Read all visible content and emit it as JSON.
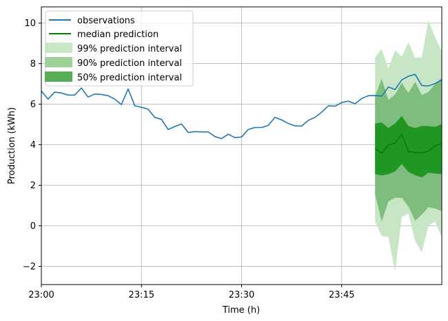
{
  "chart_data": {
    "type": "line",
    "xlabel": "Time (h)",
    "ylabel": "Production (kWh)",
    "xlim": [
      0,
      60
    ],
    "ylim": [
      -2.9,
      10.8
    ],
    "grid": true,
    "legend_position": "top-left",
    "x_ticks": [
      {
        "x": 0,
        "label": "23:00"
      },
      {
        "x": 15,
        "label": "23:15"
      },
      {
        "x": 30,
        "label": "23:30"
      },
      {
        "x": 45,
        "label": "23:45"
      }
    ],
    "y_ticks": [
      {
        "y": -2,
        "label": "−2"
      },
      {
        "y": 0,
        "label": "0"
      },
      {
        "y": 2,
        "label": "2"
      },
      {
        "y": 4,
        "label": "4"
      },
      {
        "y": 6,
        "label": "6"
      },
      {
        "y": 8,
        "label": "8"
      },
      {
        "y": 10,
        "label": "10"
      }
    ],
    "observations": {
      "name": "observations",
      "color": "#1f77b4",
      "x": [
        0,
        1,
        2,
        3,
        4,
        5,
        6,
        7,
        8,
        9,
        10,
        11,
        12,
        13,
        14,
        15,
        16,
        17,
        18,
        19,
        20,
        21,
        22,
        23,
        24,
        25,
        26,
        27,
        28,
        29,
        30,
        31,
        32,
        33,
        34,
        35,
        36,
        37,
        38,
        39,
        40,
        41,
        42,
        43,
        44,
        45,
        46,
        47,
        48,
        49,
        50,
        51,
        52,
        53,
        54,
        55,
        56,
        57,
        58,
        59,
        60
      ],
      "y": [
        6.65,
        6.25,
        6.6,
        6.55,
        6.45,
        6.45,
        6.8,
        6.35,
        6.5,
        6.48,
        6.42,
        6.25,
        5.98,
        6.75,
        5.92,
        5.85,
        5.75,
        5.35,
        5.25,
        4.75,
        4.9,
        5.02,
        4.6,
        4.65,
        4.63,
        4.63,
        4.4,
        4.3,
        4.52,
        4.35,
        4.38,
        4.75,
        4.85,
        4.85,
        4.95,
        5.35,
        5.22,
        5.05,
        4.93,
        4.92,
        5.2,
        5.35,
        5.6,
        5.92,
        5.9,
        6.08,
        6.15,
        6.02,
        6.28,
        6.42,
        6.43,
        6.4,
        6.85,
        6.72,
        7.2,
        7.38,
        7.47,
        6.92,
        6.9,
        7.02,
        7.2
      ]
    },
    "median": {
      "name": "median prediction",
      "color": "#008000",
      "x": [
        50,
        51,
        52,
        53,
        54,
        55,
        56,
        57,
        58,
        59,
        60
      ],
      "y": [
        3.82,
        3.58,
        3.98,
        4.08,
        4.52,
        3.65,
        3.62,
        3.6,
        3.68,
        3.95,
        4.07
      ]
    },
    "intervals": [
      {
        "name": "99% prediction interval",
        "color": "#c8e6c5",
        "x": [
          50,
          51,
          52,
          53,
          54,
          55,
          56,
          57,
          58,
          59,
          60
        ],
        "lower": [
          0.2,
          -0.5,
          -0.55,
          -2.25,
          0.45,
          0.6,
          -0.75,
          -1.3,
          0.0,
          0.2,
          -0.55
        ],
        "upper": [
          8.3,
          8.72,
          7.75,
          8.65,
          8.35,
          9.05,
          8.3,
          8.3,
          10.15,
          9.3,
          8.6
        ]
      },
      {
        "name": "90% prediction interval",
        "color": "#7dbd7d",
        "x": [
          50,
          51,
          52,
          53,
          54,
          55,
          56,
          57,
          58,
          59,
          60
        ],
        "lower": [
          1.55,
          0.22,
          1.2,
          1.38,
          1.38,
          0.95,
          0.25,
          0.55,
          0.92,
          0.85,
          0.72
        ],
        "upper": [
          6.4,
          7.25,
          6.2,
          6.48,
          7.05,
          6.55,
          7.1,
          6.45,
          6.6,
          7.0,
          7.3
        ]
      },
      {
        "name": "50% prediction interval",
        "color": "#229622",
        "x": [
          50,
          51,
          52,
          53,
          54,
          55,
          56,
          57,
          58,
          59,
          60
        ],
        "lower": [
          2.55,
          2.48,
          2.55,
          2.68,
          3.05,
          2.65,
          2.5,
          2.38,
          2.62,
          2.58,
          2.55
        ],
        "upper": [
          5.05,
          5.1,
          4.82,
          5.05,
          5.42,
          4.92,
          4.82,
          4.92,
          4.92,
          4.88,
          5.02
        ]
      }
    ],
    "legend_swatch_colors": [
      "#c8e6c5",
      "#9ed19a",
      "#57ac57"
    ]
  }
}
